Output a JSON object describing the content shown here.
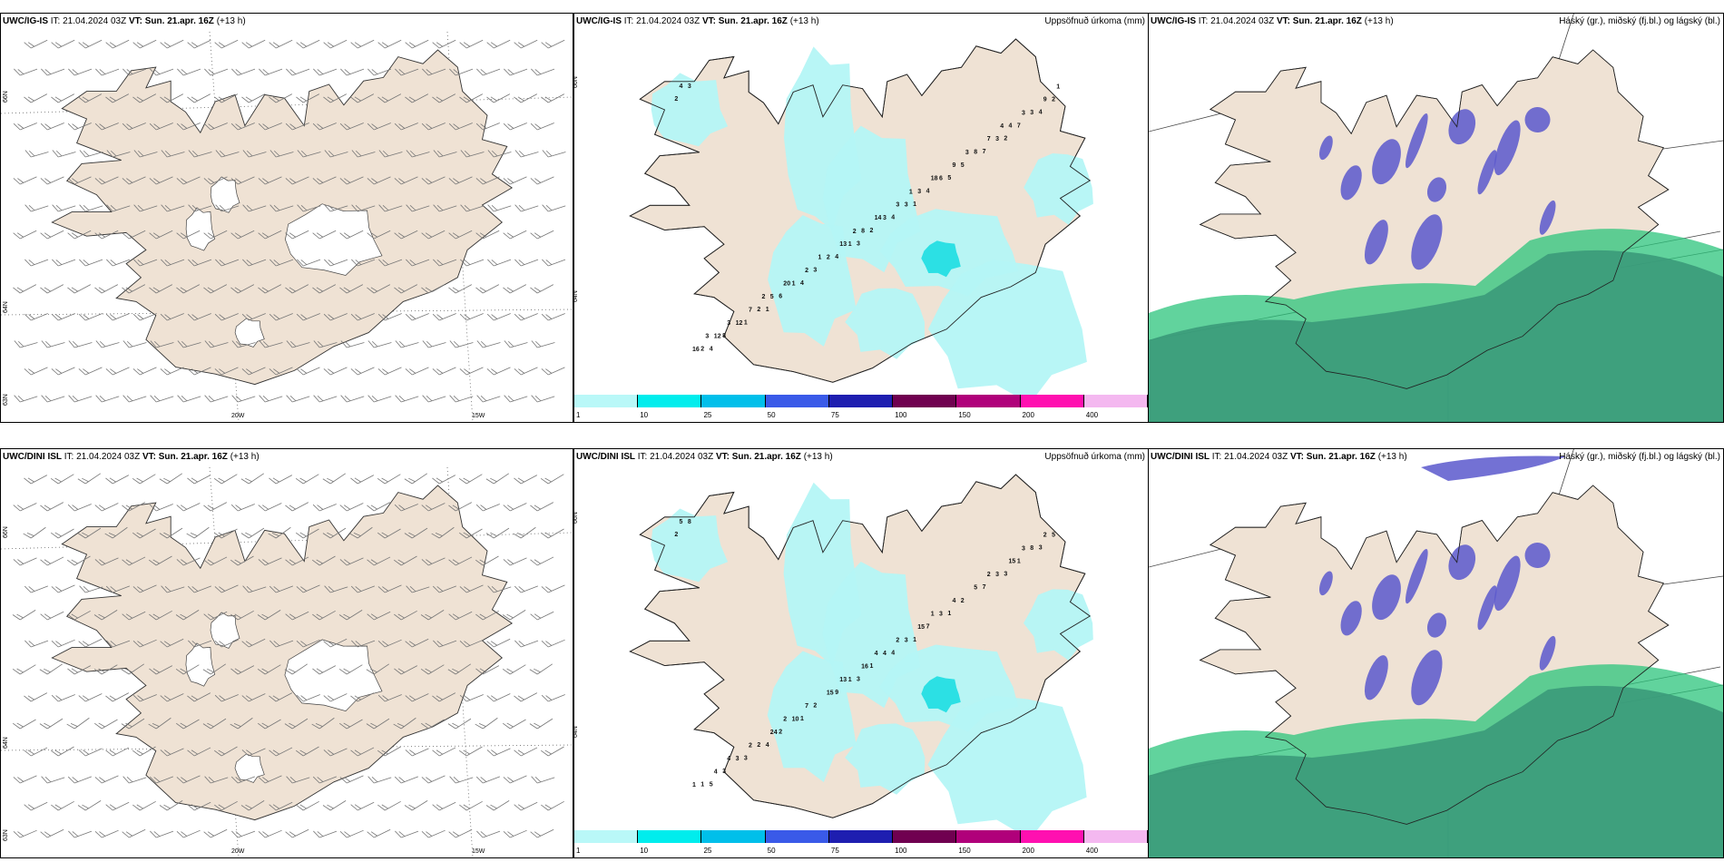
{
  "panels": {
    "top_left": {
      "model": "UWC/IG-IS",
      "it_label": "IT:",
      "it_value": "21.04.2024 03Z",
      "vt_label": "VT:",
      "vt_value": "Sun. 21.apr. 16Z",
      "lead": "(+13 h)"
    },
    "top_mid": {
      "model": "UWC/IG-IS",
      "it_label": "IT:",
      "it_value": "21.04.2024 03Z",
      "vt_label": "VT:",
      "vt_value": "Sun. 21.apr. 16Z",
      "lead": "(+13 h)",
      "right_title": "Uppsöfnuð úrkoma (mm)"
    },
    "top_right": {
      "model": "UWC/IG-IS",
      "it_label": "IT:",
      "it_value": "21.04.2024 03Z",
      "vt_label": "VT:",
      "vt_value": "Sun. 21.apr. 16Z",
      "lead": "(+13 h)",
      "right_title": "Háský (gr.), miðský (fj.bl.) og lágský (bl.)"
    },
    "bot_left": {
      "model": "UWC/DINI ISL",
      "it_label": "IT:",
      "it_value": "21.04.2024 03Z",
      "vt_label": "VT:",
      "vt_value": "Sun. 21.apr. 16Z",
      "lead": "(+13 h)"
    },
    "bot_mid": {
      "model": "UWC/DINI ISL",
      "it_label": "IT:",
      "it_value": "21.04.2024 03Z",
      "vt_label": "VT:",
      "vt_value": "Sun. 21.apr. 16Z",
      "lead": "(+13 h)",
      "right_title": "Uppsöfnuð úrkoma (mm)"
    },
    "bot_right": {
      "model": "UWC/DINI ISL",
      "it_label": "IT:",
      "it_value": "21.04.2024 03Z",
      "vt_label": "VT:",
      "vt_value": "Sun. 21.apr. 16Z",
      "lead": "(+13 h)",
      "right_title": "Háský (gr.), miðský (fj.bl.) og lágský (bl.)"
    }
  },
  "axes": {
    "lon_a": "20W",
    "lon_b": "15W",
    "lat_a": "66N",
    "lat_b": "64N",
    "lat_c": "63N"
  },
  "legend": {
    "labels": [
      "1",
      "10",
      "25",
      "50",
      "75",
      "100",
      "150",
      "200",
      "400"
    ],
    "colors": [
      "#b9f8f8",
      "#00eded",
      "#00bfea",
      "#3a5ae8",
      "#1e1eb0",
      "#700050",
      "#b0007a",
      "#ff10b0",
      "#f4b8f0"
    ]
  },
  "colors": {
    "land": "#efe2d4",
    "precip_light": "#b4f6f6",
    "precip_mid": "#2ce0e4",
    "cloud_high": "#5a58cc",
    "cloud_low": "#3b9a7a",
    "cloud_mid": "#2cc47c"
  },
  "precip_values_top": [
    "2",
    "1",
    "1",
    "2",
    "3",
    "4",
    "5",
    "4",
    "4",
    "4",
    "1",
    "7",
    "4",
    "3",
    "4",
    "6",
    "7",
    "2",
    "8",
    "5",
    "3",
    "2",
    "3",
    "2",
    "3",
    "1",
    "2",
    "6",
    "1",
    "3",
    "3",
    "12",
    "8",
    "2",
    "4",
    "3",
    "5",
    "4",
    "8",
    "12",
    "9",
    "2",
    "9",
    "3",
    "7",
    "7",
    "13",
    "16",
    "18",
    "20",
    "3",
    "14",
    "3",
    "3",
    "1",
    "1",
    "1",
    "2",
    "4",
    "2",
    "3"
  ],
  "precip_values_bot": [
    "2",
    "1",
    "4",
    "3",
    "3",
    "5",
    "1",
    "1",
    "3",
    "4",
    "3",
    "7",
    "9",
    "8",
    "7",
    "2",
    "1",
    "1",
    "3",
    "2",
    "2",
    "5",
    "3",
    "2",
    "3",
    "1",
    "1",
    "3",
    "10",
    "8",
    "4",
    "3",
    "5",
    "15",
    "5",
    "15",
    "24",
    "15",
    "16",
    "4",
    "4",
    "7",
    "2",
    "2",
    "2",
    "2",
    "13",
    "1",
    "1",
    "2",
    "3",
    "4",
    "4"
  ]
}
